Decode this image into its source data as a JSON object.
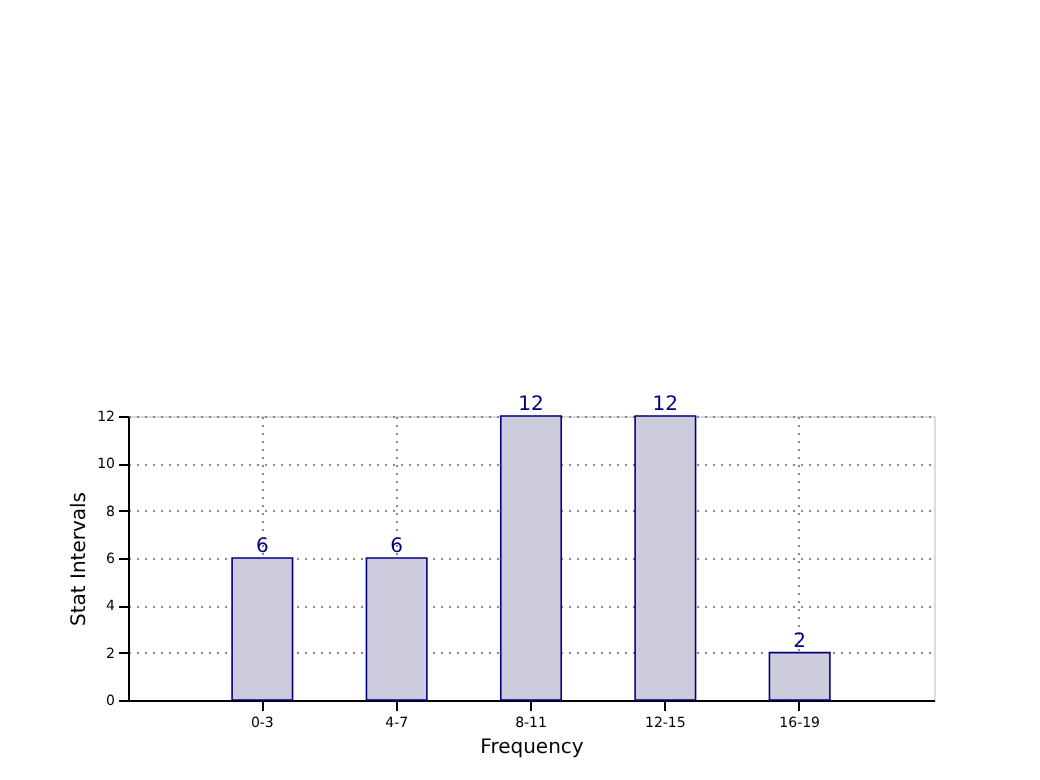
{
  "chart_data": {
    "type": "bar",
    "xlabel": "Frequency",
    "ylabel": "Stat Intervals",
    "categories": [
      "0-3",
      "4-7",
      "8-11",
      "12-15",
      "16-19"
    ],
    "values": [
      6,
      6,
      12,
      12,
      2
    ],
    "color": "#ccccdd",
    "ylim": [
      0,
      12
    ],
    "yticks": [
      0,
      2,
      4,
      6,
      8,
      10,
      12
    ],
    "grid": true,
    "data_labels": true
  }
}
